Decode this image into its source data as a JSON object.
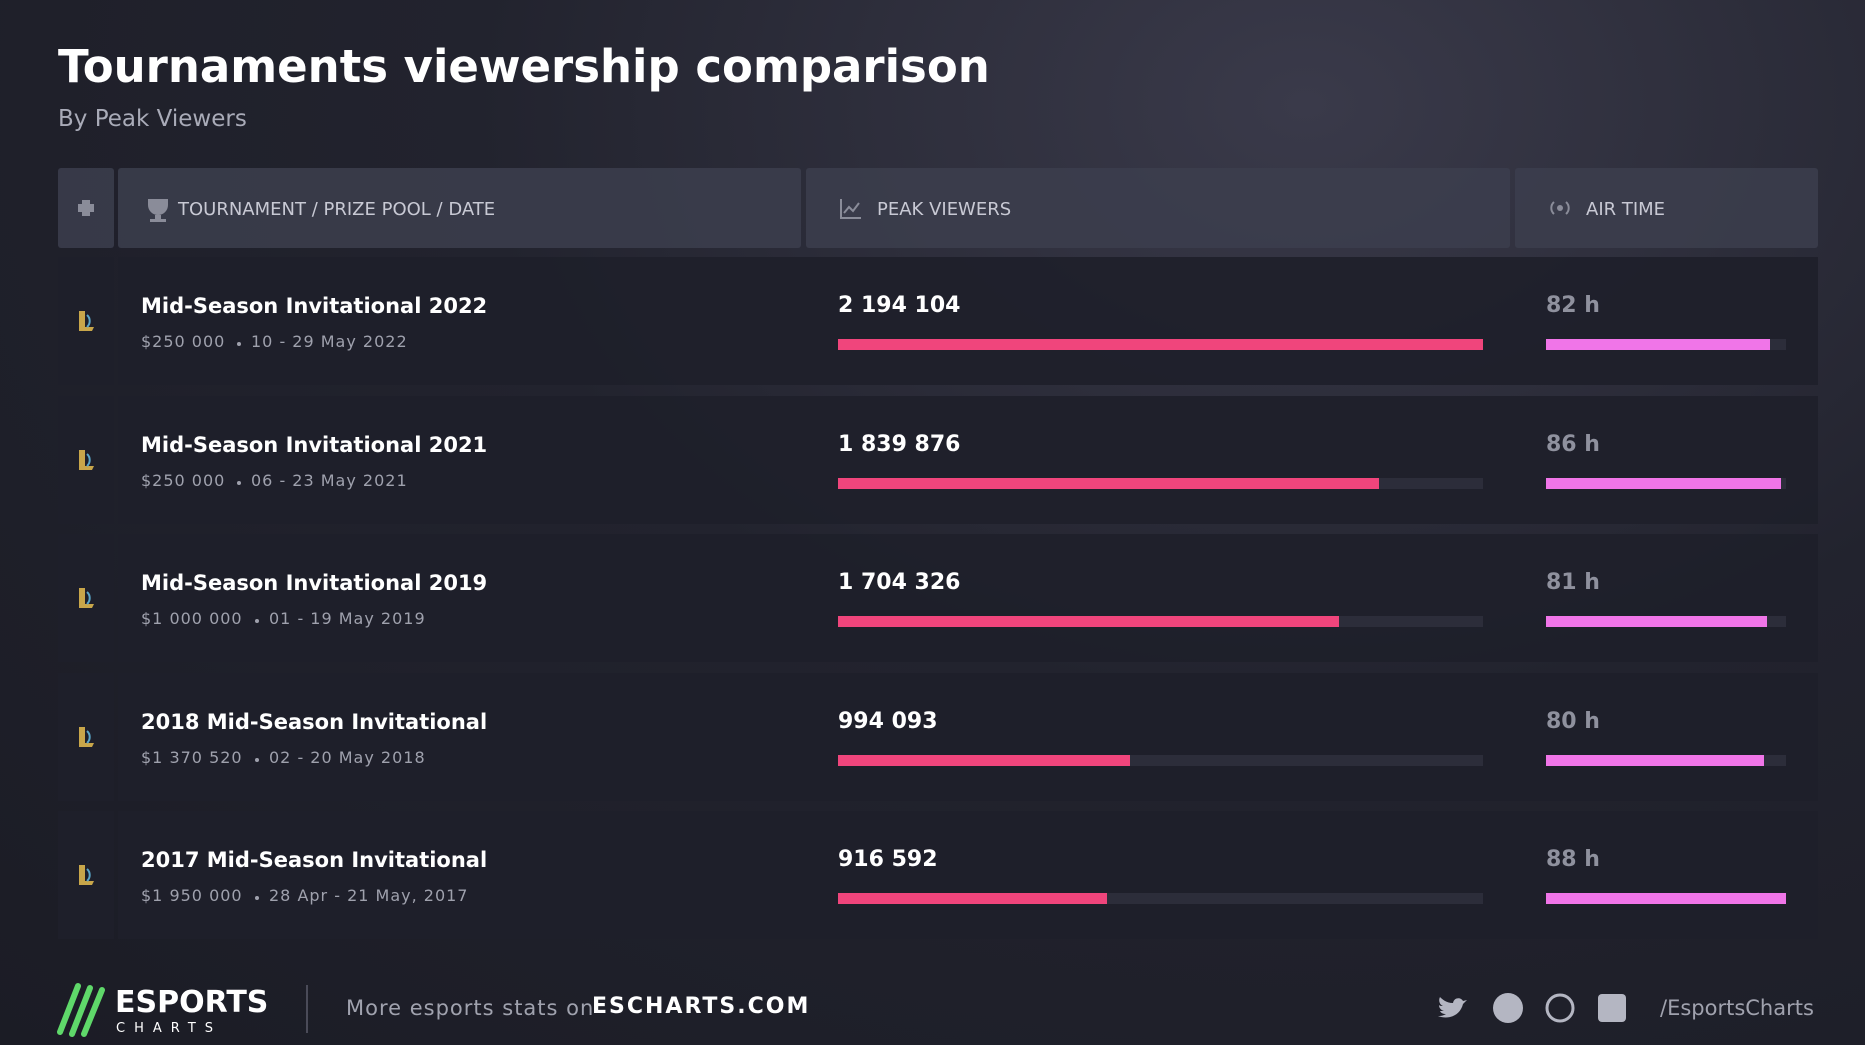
{
  "header": {
    "title": "Tournaments viewership comparison",
    "subtitle": "By Peak Viewers"
  },
  "table": {
    "columns": [
      "TOURNAMENT / PRIZE POOL / DATE",
      "PEAK VIEWERS",
      "AIR TIME"
    ],
    "peak_viewers_color": "#f0457c",
    "air_time_color": "#f075e8",
    "rows": [
      {
        "name": "Mid-Season Invitational 2022",
        "prize_pool": "$250 000",
        "date": "10 - 29 May 2022",
        "peak_viewers": 2194104,
        "peak_viewers_label": "2 194 104",
        "air_time": 82,
        "air_time_label": "82 h"
      },
      {
        "name": "Mid-Season Invitational 2021",
        "prize_pool": "$250 000",
        "date": "06 - 23 May 2021",
        "peak_viewers": 1839876,
        "peak_viewers_label": "1 839 876",
        "air_time": 86,
        "air_time_label": "86 h"
      },
      {
        "name": "Mid-Season Invitational 2019",
        "prize_pool": "$1 000 000",
        "date": "01 - 19 May 2019",
        "peak_viewers": 1704326,
        "peak_viewers_label": "1 704 326",
        "air_time": 81,
        "air_time_label": "81 h"
      },
      {
        "name": "2018 Mid-Season Invitational",
        "prize_pool": "$1 370 520",
        "date": "02 - 20 May 2018",
        "peak_viewers": 994093,
        "peak_viewers_label": "994 093",
        "air_time": 80,
        "air_time_label": "80 h"
      },
      {
        "name": "2017 Mid-Season Invitational",
        "prize_pool": "$1 950 000",
        "date": "28 Apr - 21 May, 2017",
        "peak_viewers": 916592,
        "peak_viewers_label": "916 592",
        "air_time": 88,
        "air_time_label": "88 h"
      }
    ]
  },
  "footer": {
    "logo_top": "ESPORTS",
    "logo_bottom": "CHARTS",
    "more_text": "More esports stats on",
    "site": "ESCHARTS.COM",
    "handle": "/EsportsCharts"
  }
}
